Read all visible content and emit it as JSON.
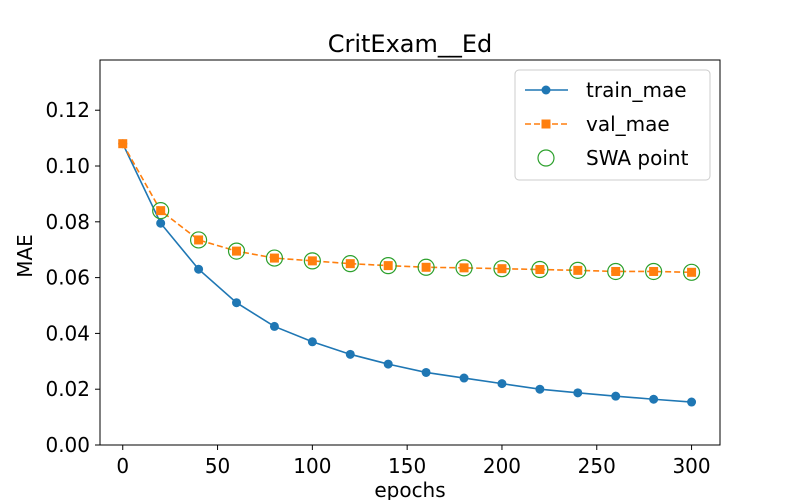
{
  "chart_data": {
    "type": "line",
    "title": "CritExam__Ed",
    "xlabel": "epochs",
    "ylabel": "MAE",
    "xlim": [
      -12,
      315
    ],
    "ylim": [
      0,
      0.138
    ],
    "xticks": [
      0,
      50,
      100,
      150,
      200,
      250,
      300
    ],
    "yticks": [
      0.0,
      0.02,
      0.04,
      0.06,
      0.08,
      0.1,
      0.12
    ],
    "xtick_labels": [
      "0",
      "50",
      "100",
      "150",
      "200",
      "250",
      "300"
    ],
    "ytick_labels": [
      "0.00",
      "0.02",
      "0.04",
      "0.06",
      "0.08",
      "0.10",
      "0.12"
    ],
    "grid": false,
    "legend_position": "top-right",
    "series": [
      {
        "name": "train_mae",
        "color": "#1f77b4",
        "marker": "circle",
        "line_style": "solid",
        "x": [
          0,
          20,
          40,
          60,
          80,
          100,
          120,
          140,
          160,
          180,
          200,
          220,
          240,
          260,
          280,
          300
        ],
        "y": [
          0.108,
          0.0795,
          0.063,
          0.051,
          0.0425,
          0.037,
          0.0325,
          0.029,
          0.026,
          0.024,
          0.022,
          0.02,
          0.0187,
          0.0175,
          0.0164,
          0.0154
        ]
      },
      {
        "name": "val_mae",
        "color": "#ff7f0e",
        "marker": "square",
        "line_style": "dashed",
        "x": [
          0,
          20,
          40,
          60,
          80,
          100,
          120,
          140,
          160,
          180,
          200,
          220,
          240,
          260,
          280,
          300
        ],
        "y": [
          0.108,
          0.084,
          0.0735,
          0.0695,
          0.067,
          0.066,
          0.065,
          0.0643,
          0.0637,
          0.0635,
          0.0632,
          0.0629,
          0.0626,
          0.0622,
          0.0622,
          0.0619
        ]
      },
      {
        "name": "SWA point",
        "color": "#2ca02c",
        "marker": "open-circle",
        "line_style": "none",
        "x": [
          20,
          40,
          60,
          80,
          100,
          120,
          140,
          160,
          180,
          200,
          220,
          240,
          260,
          280,
          300
        ],
        "y": [
          0.084,
          0.0735,
          0.0695,
          0.067,
          0.066,
          0.065,
          0.0643,
          0.0637,
          0.0635,
          0.0632,
          0.0629,
          0.0626,
          0.0622,
          0.0622,
          0.0619
        ]
      }
    ]
  }
}
